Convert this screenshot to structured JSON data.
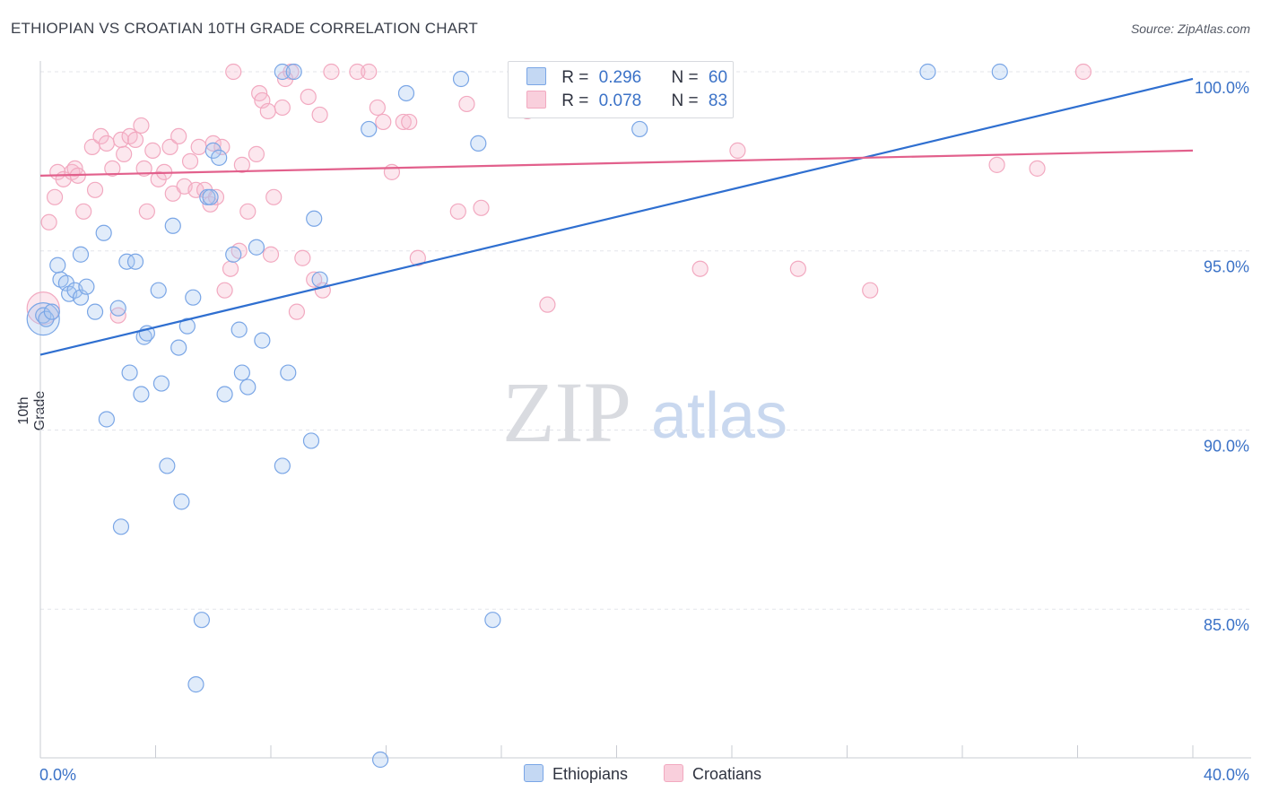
{
  "title": "ETHIOPIAN VS CROATIAN 10TH GRADE CORRELATION CHART",
  "source": "Source: ZipAtlas.com",
  "watermark": {
    "zip": "ZIP",
    "atlas": "atlas"
  },
  "legend": {
    "rows": [
      {
        "r_label": "R =",
        "r_value": "0.296",
        "n_label": "N =",
        "n_value": "60"
      },
      {
        "r_label": "R =",
        "r_value": "0.078",
        "n_label": "N =",
        "n_value": "83"
      }
    ]
  },
  "chart_data": {
    "type": "scatter",
    "title": "ETHIOPIAN VS CROATIAN 10TH GRADE CORRELATION CHART",
    "xlabel": "",
    "ylabel": "10th Grade",
    "xlim": [
      0,
      40
    ],
    "ylim": [
      80.5,
      101
    ],
    "x_tick_labels": {
      "left": "0.0%",
      "right": "40.0%"
    },
    "y_ticks": [
      {
        "value": 100,
        "label": "100.0%"
      },
      {
        "value": 95,
        "label": "95.0%"
      },
      {
        "value": 90,
        "label": "90.0%"
      },
      {
        "value": 85,
        "label": "85.0%"
      }
    ],
    "grid": true,
    "legend_position": "top-center",
    "series": [
      {
        "name": "Ethiopians",
        "color": "#7aa6e6",
        "line_color": "#2f6fd0",
        "trend": {
          "x0": 0,
          "y0": 92.1,
          "x1": 40,
          "y1": 99.8
        },
        "points": [
          [
            0.1,
            93.2
          ],
          [
            0.2,
            93.1
          ],
          [
            0.4,
            93.3
          ],
          [
            0.6,
            94.6
          ],
          [
            0.7,
            94.2
          ],
          [
            0.9,
            94.1
          ],
          [
            1.0,
            93.8
          ],
          [
            1.2,
            93.9
          ],
          [
            1.4,
            93.7
          ],
          [
            1.6,
            94.0
          ],
          [
            1.4,
            94.9
          ],
          [
            1.9,
            93.3
          ],
          [
            2.2,
            95.5
          ],
          [
            2.3,
            90.3
          ],
          [
            2.7,
            93.4
          ],
          [
            2.8,
            87.3
          ],
          [
            3.0,
            94.7
          ],
          [
            3.1,
            91.6
          ],
          [
            3.3,
            94.7
          ],
          [
            3.5,
            91.0
          ],
          [
            3.6,
            92.6
          ],
          [
            3.7,
            92.7
          ],
          [
            4.1,
            93.9
          ],
          [
            4.2,
            91.3
          ],
          [
            4.4,
            89.0
          ],
          [
            4.6,
            95.7
          ],
          [
            4.8,
            92.3
          ],
          [
            4.9,
            88.0
          ],
          [
            5.1,
            92.9
          ],
          [
            5.3,
            93.7
          ],
          [
            5.4,
            82.9
          ],
          [
            5.6,
            84.7
          ],
          [
            5.8,
            96.5
          ],
          [
            6.0,
            97.8
          ],
          [
            6.2,
            97.6
          ],
          [
            6.4,
            91.0
          ],
          [
            6.7,
            94.9
          ],
          [
            6.9,
            92.8
          ],
          [
            7.0,
            91.6
          ],
          [
            7.2,
            91.2
          ],
          [
            7.5,
            95.1
          ],
          [
            7.7,
            92.5
          ],
          [
            8.4,
            89.0
          ],
          [
            8.6,
            91.6
          ],
          [
            8.4,
            100.0
          ],
          [
            8.8,
            100.0
          ],
          [
            9.4,
            89.7
          ],
          [
            9.5,
            95.9
          ],
          [
            9.7,
            94.2
          ],
          [
            11.4,
            98.4
          ],
          [
            11.8,
            80.8
          ],
          [
            12.7,
            99.4
          ],
          [
            14.6,
            99.8
          ],
          [
            15.2,
            98.0
          ],
          [
            15.7,
            84.7
          ],
          [
            20.8,
            98.4
          ],
          [
            30.8,
            100.0
          ],
          [
            33.3,
            100.0
          ],
          [
            5.9,
            96.5
          ]
        ],
        "big_point": [
          0.1,
          93.1
        ]
      },
      {
        "name": "Croatians",
        "color": "#f2a9c0",
        "line_color": "#e2608c",
        "trend": {
          "x0": 0,
          "y0": 97.1,
          "x1": 40,
          "y1": 97.8
        },
        "points": [
          [
            0.3,
            95.8
          ],
          [
            0.5,
            96.5
          ],
          [
            0.6,
            97.2
          ],
          [
            0.8,
            97.0
          ],
          [
            1.1,
            97.2
          ],
          [
            1.2,
            97.3
          ],
          [
            1.3,
            97.1
          ],
          [
            1.5,
            96.1
          ],
          [
            1.8,
            97.9
          ],
          [
            1.9,
            96.7
          ],
          [
            2.1,
            98.2
          ],
          [
            2.3,
            98.0
          ],
          [
            2.5,
            97.3
          ],
          [
            2.7,
            93.2
          ],
          [
            2.8,
            98.1
          ],
          [
            2.9,
            97.7
          ],
          [
            3.1,
            98.2
          ],
          [
            3.3,
            98.1
          ],
          [
            3.5,
            98.5
          ],
          [
            3.6,
            97.3
          ],
          [
            3.7,
            96.1
          ],
          [
            3.9,
            97.8
          ],
          [
            4.1,
            97.0
          ],
          [
            4.3,
            97.2
          ],
          [
            4.5,
            97.9
          ],
          [
            4.6,
            96.6
          ],
          [
            4.8,
            98.2
          ],
          [
            5.0,
            96.8
          ],
          [
            5.2,
            97.5
          ],
          [
            5.4,
            96.7
          ],
          [
            5.5,
            97.9
          ],
          [
            5.7,
            96.7
          ],
          [
            5.9,
            96.3
          ],
          [
            6.0,
            98.0
          ],
          [
            6.1,
            96.5
          ],
          [
            6.3,
            97.9
          ],
          [
            6.4,
            93.9
          ],
          [
            6.6,
            94.5
          ],
          [
            6.7,
            100.0
          ],
          [
            6.9,
            95.0
          ],
          [
            7.0,
            97.4
          ],
          [
            7.2,
            96.1
          ],
          [
            7.5,
            97.7
          ],
          [
            7.6,
            99.4
          ],
          [
            7.7,
            99.2
          ],
          [
            7.9,
            98.9
          ],
          [
            8.0,
            94.9
          ],
          [
            8.1,
            96.5
          ],
          [
            8.4,
            99.0
          ],
          [
            8.5,
            99.8
          ],
          [
            8.7,
            100.0
          ],
          [
            8.9,
            93.3
          ],
          [
            9.1,
            94.8
          ],
          [
            9.3,
            99.3
          ],
          [
            9.5,
            94.2
          ],
          [
            9.7,
            98.8
          ],
          [
            9.8,
            93.9
          ],
          [
            10.1,
            100.0
          ],
          [
            11.0,
            100.0
          ],
          [
            11.4,
            100.0
          ],
          [
            11.7,
            99.0
          ],
          [
            11.9,
            98.6
          ],
          [
            12.2,
            97.2
          ],
          [
            12.6,
            98.6
          ],
          [
            12.8,
            98.6
          ],
          [
            13.1,
            94.8
          ],
          [
            14.5,
            96.1
          ],
          [
            14.8,
            99.1
          ],
          [
            15.3,
            96.2
          ],
          [
            16.9,
            98.9
          ],
          [
            17.6,
            93.5
          ],
          [
            22.3,
            99.0
          ],
          [
            22.6,
            100.0
          ],
          [
            22.9,
            94.5
          ],
          [
            24.2,
            97.8
          ],
          [
            26.3,
            94.5
          ],
          [
            28.8,
            93.9
          ],
          [
            33.2,
            97.4
          ],
          [
            34.6,
            97.3
          ],
          [
            36.2,
            100.0
          ]
        ],
        "big_point": [
          0.1,
          93.4
        ]
      }
    ]
  }
}
